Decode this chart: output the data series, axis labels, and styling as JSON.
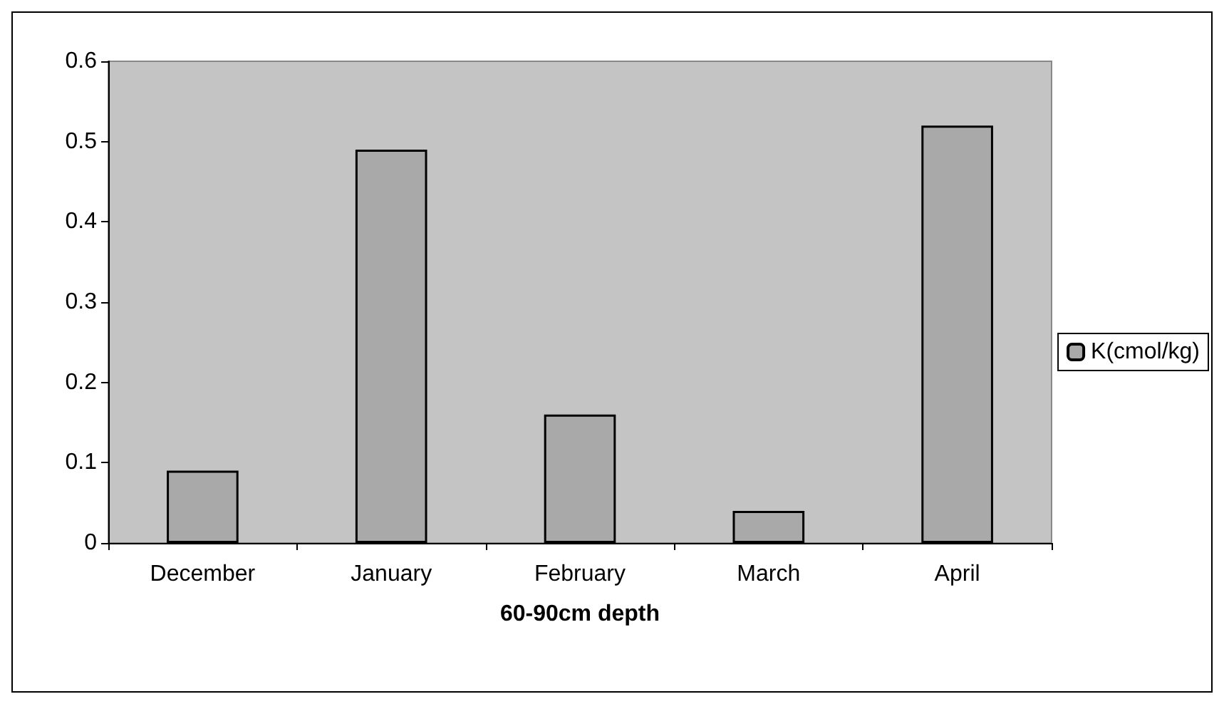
{
  "chart_data": {
    "type": "bar",
    "xlabel": "60-90cm depth",
    "categories": [
      "December",
      "January",
      "February",
      "March",
      "April"
    ],
    "series": [
      {
        "name": "K(cmol/kg)",
        "color": "#a9a9a9",
        "values": [
          0.09,
          0.49,
          0.16,
          0.04,
          0.52
        ]
      }
    ],
    "ylim": [
      0,
      0.6
    ],
    "yticks": [
      0,
      0.1,
      0.2,
      0.3,
      0.4,
      0.5,
      0.6
    ],
    "grid": false,
    "legend": "right"
  }
}
